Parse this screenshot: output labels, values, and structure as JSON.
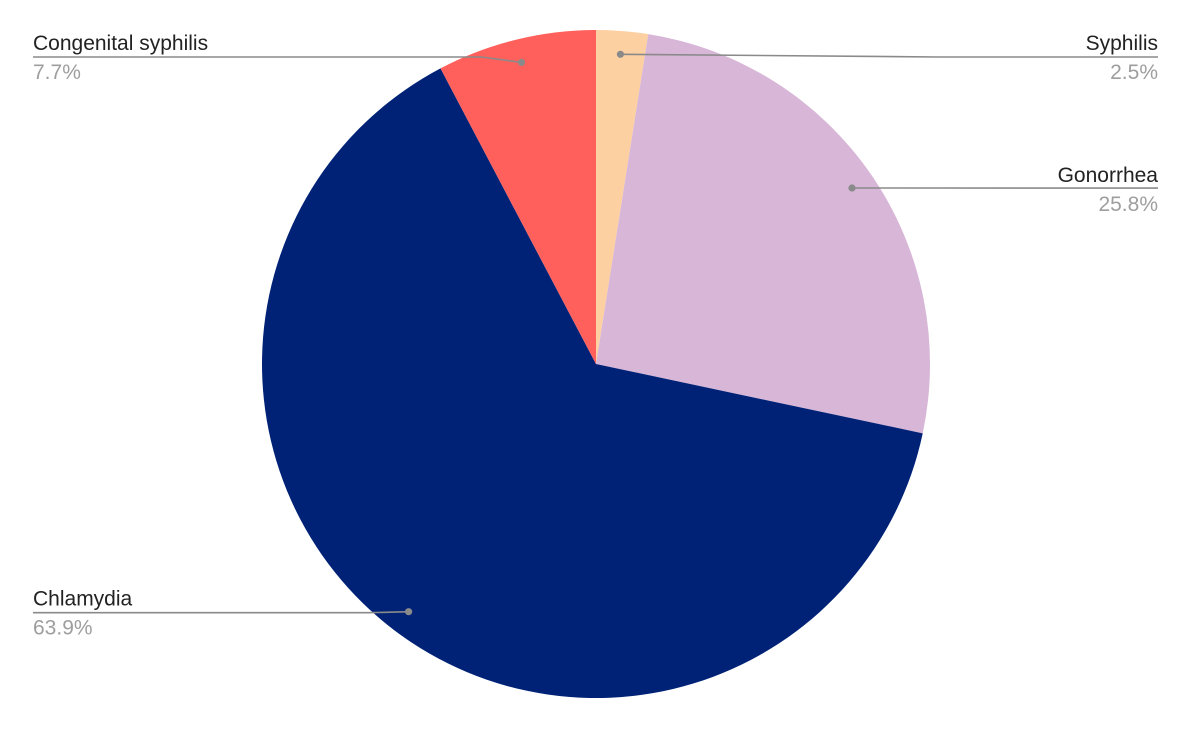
{
  "chart_data": {
    "type": "pie",
    "title": "",
    "slices": [
      {
        "label": "Syphilis",
        "value": 2.5,
        "display": "2.5%",
        "color": "#fdd0a2"
      },
      {
        "label": "Gonorrhea",
        "value": 25.8,
        "display": "25.8%",
        "color": "#d7b6d7"
      },
      {
        "label": "Chlamydia",
        "value": 63.9,
        "display": "63.9%",
        "color": "#002276"
      },
      {
        "label": "Congenital syphilis",
        "value": 7.7,
        "display": "7.7%",
        "color": "#ff605c"
      }
    ],
    "start_angle": "12 o'clock",
    "direction": "clockwise",
    "legend": "none",
    "labels": "outside with leader lines"
  }
}
